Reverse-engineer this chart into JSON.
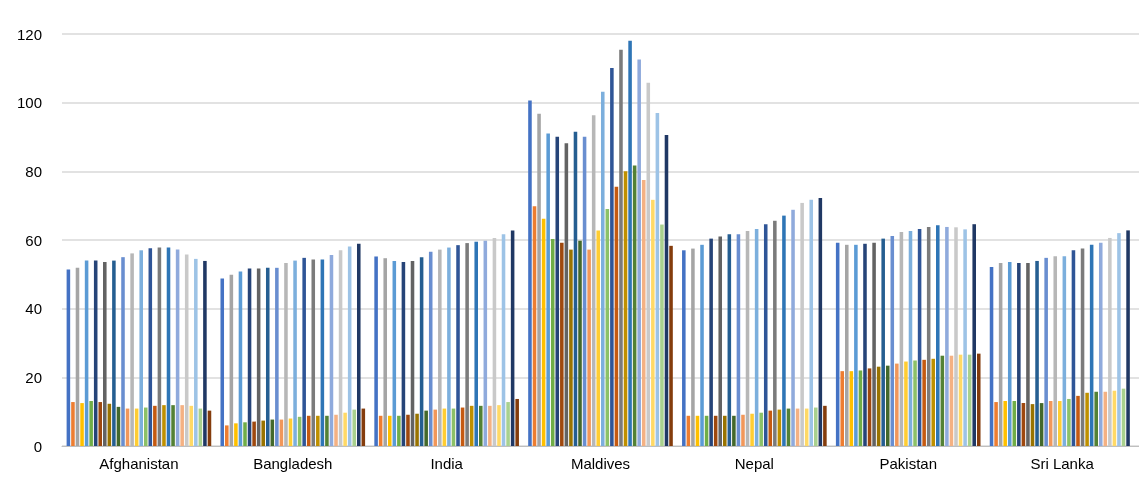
{
  "chart_data": {
    "type": "bar",
    "categories": [
      "Afghanistan",
      "Bangladesh",
      "India",
      "Maldives",
      "Nepal",
      "Pakistan",
      "Sri Lanka"
    ],
    "ylim": [
      0,
      120
    ],
    "yticks": [
      0,
      20,
      40,
      60,
      80,
      100,
      120
    ],
    "grid": "y",
    "series": [
      {
        "color": "#4472c4",
        "values": [
          51.4,
          48.8,
          55.2,
          100.6,
          57.0,
          59.2,
          52.1
        ]
      },
      {
        "color": "#ed7d31",
        "values": [
          12.8,
          6.0,
          8.8,
          69.8,
          8.8,
          21.8,
          12.8
        ]
      },
      {
        "color": "#a5a5a5",
        "values": [
          51.9,
          49.9,
          54.7,
          96.8,
          57.5,
          58.6,
          53.3
        ]
      },
      {
        "color": "#ffc000",
        "values": [
          12.5,
          6.6,
          8.8,
          66.2,
          8.8,
          21.8,
          13.1
        ]
      },
      {
        "color": "#5b9bd5",
        "values": [
          54.0,
          50.8,
          53.9,
          91.0,
          58.6,
          58.6,
          53.6
        ]
      },
      {
        "color": "#70ad47",
        "values": [
          13.1,
          6.9,
          8.8,
          60.3,
          8.8,
          22.0,
          13.1
        ]
      },
      {
        "color": "#264478",
        "values": [
          54.0,
          51.7,
          53.6,
          90.1,
          60.4,
          58.9,
          53.3
        ]
      },
      {
        "color": "#9e480e",
        "values": [
          12.8,
          7.1,
          9.1,
          59.2,
          8.8,
          22.6,
          12.5
        ]
      },
      {
        "color": "#636363",
        "values": [
          53.6,
          51.7,
          53.9,
          88.2,
          61.0,
          59.2,
          53.3
        ]
      },
      {
        "color": "#997300",
        "values": [
          12.3,
          7.4,
          9.4,
          57.2,
          8.8,
          23.1,
          12.2
        ]
      },
      {
        "color": "#255e91",
        "values": [
          54.0,
          51.9,
          55.0,
          91.5,
          61.7,
          60.4,
          53.9
        ]
      },
      {
        "color": "#43682b",
        "values": [
          11.4,
          7.7,
          10.3,
          59.8,
          8.8,
          23.4,
          12.5
        ]
      },
      {
        "color": "#698ed0",
        "values": [
          55.0,
          51.9,
          56.6,
          90.1,
          61.7,
          61.2,
          54.8
        ]
      },
      {
        "color": "#f1975a",
        "values": [
          10.9,
          7.7,
          10.6,
          57.2,
          9.1,
          24.0,
          13.1
        ]
      },
      {
        "color": "#b7b7b7",
        "values": [
          56.1,
          53.3,
          57.2,
          96.3,
          62.6,
          62.3,
          55.3
        ]
      },
      {
        "color": "#ffcd33",
        "values": [
          10.9,
          8.0,
          10.9,
          62.8,
          9.4,
          24.6,
          13.1
        ]
      },
      {
        "color": "#7cafdd",
        "values": [
          57.0,
          54.0,
          57.8,
          103.2,
          63.2,
          62.6,
          55.3
        ]
      },
      {
        "color": "#8cc168",
        "values": [
          11.2,
          8.5,
          10.9,
          69.0,
          9.7,
          24.9,
          13.7
        ]
      },
      {
        "color": "#2f5597",
        "values": [
          57.6,
          54.8,
          58.5,
          110.1,
          64.6,
          63.2,
          57.0
        ]
      },
      {
        "color": "#c55a11",
        "values": [
          11.7,
          8.8,
          11.2,
          75.5,
          10.3,
          25.1,
          14.6
        ]
      },
      {
        "color": "#7b7b7b",
        "values": [
          57.8,
          54.3,
          59.1,
          115.4,
          65.6,
          63.8,
          57.5
        ]
      },
      {
        "color": "#bf9000",
        "values": [
          11.9,
          8.8,
          11.7,
          80.0,
          10.6,
          25.4,
          15.5
        ]
      },
      {
        "color": "#2e75b6",
        "values": [
          57.8,
          54.3,
          59.5,
          118.0,
          67.1,
          64.3,
          58.6
        ]
      },
      {
        "color": "#538135",
        "values": [
          11.9,
          8.8,
          11.7,
          81.7,
          10.9,
          26.3,
          15.8
        ]
      },
      {
        "color": "#8faadc",
        "values": [
          57.2,
          55.6,
          59.8,
          112.6,
          68.8,
          63.8,
          59.2
        ]
      },
      {
        "color": "#f4b183",
        "values": [
          11.9,
          9.1,
          11.7,
          77.5,
          10.9,
          26.3,
          15.8
        ]
      },
      {
        "color": "#c9c9c9",
        "values": [
          55.8,
          57.0,
          60.6,
          105.8,
          70.8,
          63.7,
          60.6
        ]
      },
      {
        "color": "#ffd966",
        "values": [
          11.7,
          9.7,
          11.9,
          71.7,
          10.9,
          26.6,
          16.1
        ]
      },
      {
        "color": "#9dc3e6",
        "values": [
          54.5,
          58.1,
          61.7,
          97.0,
          71.7,
          63.1,
          62.0
        ]
      },
      {
        "color": "#a9d18e",
        "values": [
          10.9,
          10.6,
          12.8,
          64.5,
          11.2,
          26.6,
          16.7
        ]
      },
      {
        "color": "#203864",
        "values": [
          53.9,
          58.9,
          62.8,
          90.6,
          72.2,
          64.6,
          62.8
        ]
      },
      {
        "color": "#843c0c",
        "values": [
          10.3,
          10.9,
          13.7,
          58.3,
          11.7,
          26.9,
          null
        ]
      }
    ]
  }
}
